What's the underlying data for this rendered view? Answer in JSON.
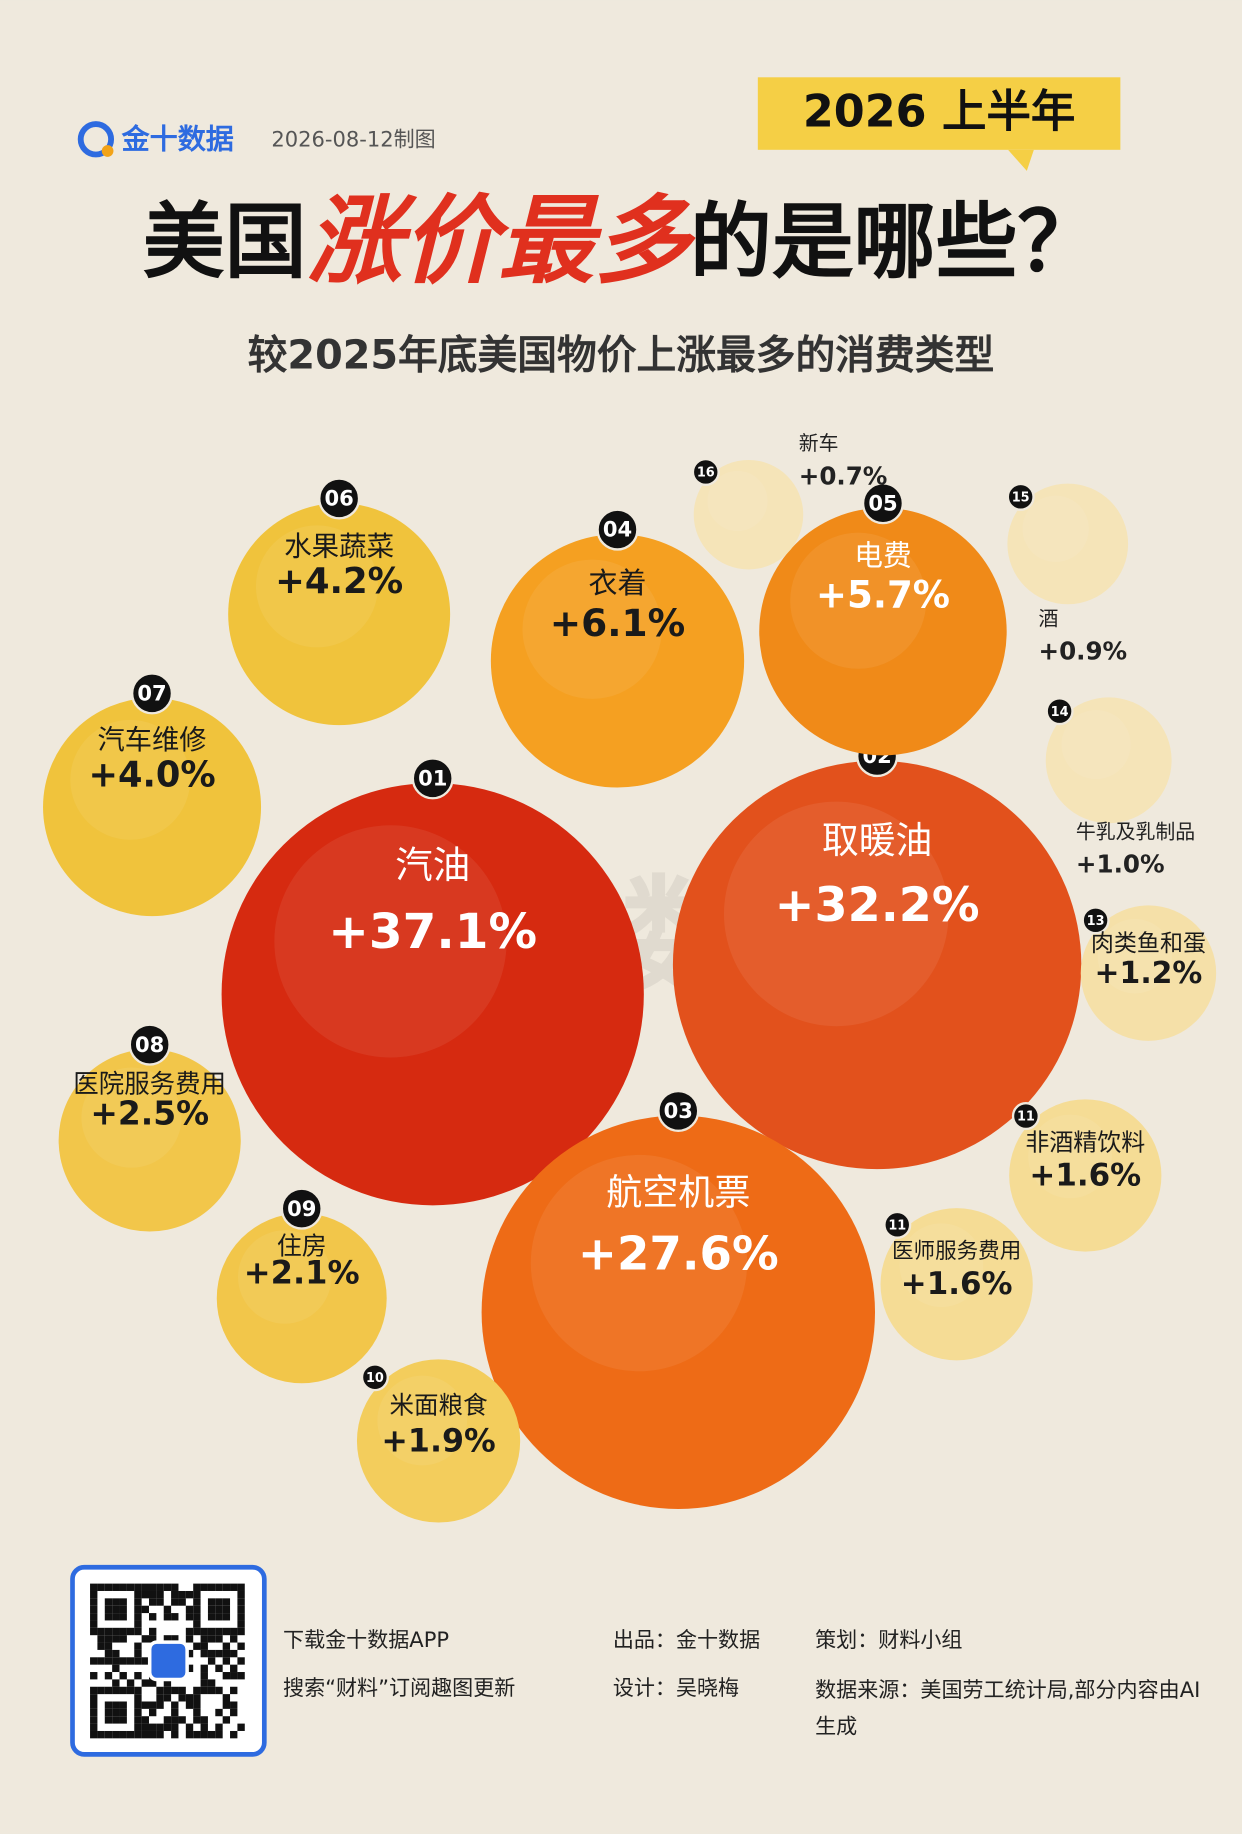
{
  "header": {
    "logo": "金十数据",
    "date": "2026-08-12制图",
    "badge": "2026 上半年",
    "title_parts": [
      "美国",
      "涨价最多",
      "的是哪些？"
    ]
  },
  "chart_data": {
    "type": "bubble",
    "subtitle": "较2025年底美国物价上涨最多的消费类型",
    "categories": [
      "汽油",
      "取暖油",
      "航空机票",
      "衣着",
      "电费",
      "水果蔬菜",
      "汽车维修",
      "医院服务费用",
      "住房",
      "米面粮食",
      "非酒精饮料",
      "医师服务费用",
      "肉类鱼和蛋",
      "牛乳及乳制品",
      "酒",
      "新车"
    ],
    "ranks": [
      "01",
      "02",
      "03",
      "04",
      "05",
      "06",
      "07",
      "08",
      "09",
      "10",
      "11",
      "11",
      "13",
      "14",
      "15",
      "16"
    ],
    "values": [
      37.1,
      32.2,
      27.6,
      6.1,
      5.7,
      4.2,
      4.0,
      2.5,
      2.1,
      1.9,
      1.6,
      1.6,
      1.2,
      1.0,
      0.9,
      0.7
    ],
    "value_labels": [
      "+37.1%",
      "+32.2%",
      "+27.6%",
      "+6.1%",
      "+5.7%",
      "+4.2%",
      "+4.0%",
      "+2.5%",
      "+2.1%",
      "+1.9%",
      "+1.6%",
      "+1.6%",
      "+1.2%",
      "+1.0%",
      "+0.9%",
      "+0.7%"
    ],
    "colors": [
      "#d62a10",
      "#e2511c",
      "#ee6b16",
      "#f5a021",
      "#f08a18",
      "#f0c33c",
      "#f0c33c",
      "#f2c64a",
      "#f2c64a",
      "#f3cd5c",
      "#f5dc95",
      "#f5dc95",
      "#f5e0a8",
      "#f5e4b8",
      "#f5e4b8",
      "#f5e4b8"
    ]
  },
  "footer": {
    "download": "下载金十数据APP",
    "search": "搜索“财料”订阅趣图更新",
    "producer": "出品：金十数据",
    "designer": "设计：吴晓梅",
    "planner": "策划：财料小组",
    "source": "数据来源：美国劳工统计局,部分内容由AI生成"
  }
}
